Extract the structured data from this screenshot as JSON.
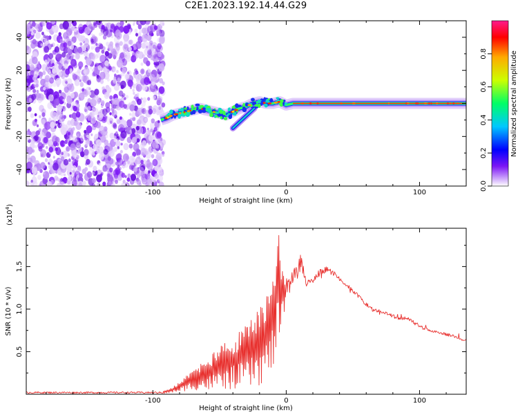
{
  "title": "C2E1.2023.192.14.44.G29",
  "chart_data": [
    {
      "type": "heatmap",
      "xlabel": "Height of straight line (km)",
      "ylabel": "Frequency (Hz)",
      "xlim": [
        -195,
        135
      ],
      "ylim": [
        -50,
        50
      ],
      "x_ticks": [
        -100,
        0,
        100
      ],
      "y_ticks": [
        -40,
        -20,
        0,
        20,
        40
      ],
      "noise_region_x": [
        -195,
        -92
      ],
      "signal_track": [
        [
          -94,
          -10
        ],
        [
          -90,
          -9
        ],
        [
          -85,
          -7
        ],
        [
          -80,
          -6
        ],
        [
          -75,
          -5
        ],
        [
          -70,
          -4
        ],
        [
          -65,
          -3
        ],
        [
          -60,
          -4
        ],
        [
          -55,
          -5
        ],
        [
          -50,
          -6
        ],
        [
          -45,
          -7
        ],
        [
          -40,
          -5
        ],
        [
          -35,
          -3
        ],
        [
          -30,
          -2
        ],
        [
          -25,
          0
        ],
        [
          -20,
          1
        ],
        [
          -15,
          0
        ],
        [
          -10,
          0
        ],
        [
          -5,
          1
        ],
        [
          0,
          -1
        ],
        [
          5,
          0
        ],
        [
          10,
          0
        ],
        [
          20,
          0
        ],
        [
          40,
          0
        ],
        [
          60,
          0
        ],
        [
          80,
          0
        ],
        [
          100,
          0
        ],
        [
          120,
          0
        ],
        [
          135,
          0
        ]
      ],
      "secondary_branch": [
        [
          -40,
          -15
        ],
        [
          -36,
          -12
        ],
        [
          -32,
          -9
        ],
        [
          -28,
          -6
        ],
        [
          -24,
          -3
        ]
      ],
      "colorbar": {
        "label": "Normalized spectral amplitude",
        "range": [
          0,
          1
        ],
        "ticks": [
          "0.0",
          "0.2",
          "0.4",
          "0.6",
          "0.8"
        ],
        "colors": [
          "#ffffff",
          "#7c16f5",
          "#0000ff",
          "#00c8ff",
          "#00ff66",
          "#ccff00",
          "#ffaa00",
          "#ff0000",
          "#ff1a8c"
        ]
      }
    },
    {
      "type": "line",
      "xlabel": "Height of straight line (km)",
      "ylabel": "SNR (10 * v/v)",
      "y_multiplier": "(x10",
      "y_multiplier_exp": "4",
      "xlim": [
        -195,
        135
      ],
      "ylim": [
        0.0,
        1.95
      ],
      "x_ticks": [
        -100,
        0,
        100
      ],
      "y_ticks": [
        "0.5",
        "1.0",
        "1.5"
      ],
      "color": "#e8312f",
      "series": [
        {
          "envelope": [
            [
              -195,
              0.02
            ],
            [
              -120,
              0.03
            ],
            [
              -95,
              0.03
            ],
            [
              -88,
              0.06
            ],
            [
              -82,
              0.12
            ],
            [
              -75,
              0.22
            ],
            [
              -70,
              0.3
            ],
            [
              -62,
              0.4
            ],
            [
              -55,
              0.48
            ],
            [
              -48,
              0.58
            ],
            [
              -42,
              0.65
            ],
            [
              -36,
              0.72
            ],
            [
              -30,
              0.82
            ],
            [
              -24,
              0.9
            ],
            [
              -18,
              1.1
            ],
            [
              -12,
              1.3
            ],
            [
              -8,
              1.6
            ],
            [
              -6,
              1.95
            ],
            [
              -2,
              1.45
            ],
            [
              2,
              1.35
            ],
            [
              6,
              1.5
            ],
            [
              10,
              1.7
            ],
            [
              15,
              1.38
            ],
            [
              20,
              1.36
            ],
            [
              25,
              1.47
            ],
            [
              30,
              1.5
            ],
            [
              35,
              1.46
            ],
            [
              40,
              1.38
            ],
            [
              45,
              1.3
            ],
            [
              50,
              1.26
            ],
            [
              55,
              1.16
            ],
            [
              60,
              1.06
            ],
            [
              65,
              1.02
            ],
            [
              70,
              0.98
            ],
            [
              75,
              0.97
            ],
            [
              80,
              0.94
            ],
            [
              85,
              0.9
            ],
            [
              90,
              0.92
            ],
            [
              95,
              0.88
            ],
            [
              100,
              0.82
            ],
            [
              105,
              0.78
            ],
            [
              110,
              0.76
            ],
            [
              115,
              0.74
            ],
            [
              120,
              0.72
            ],
            [
              125,
              0.7
            ],
            [
              130,
              0.66
            ],
            [
              135,
              0.64
            ]
          ],
          "floor": [
            [
              -195,
              0.0
            ],
            [
              -95,
              0.0
            ],
            [
              -85,
              0.02
            ],
            [
              -70,
              0.05
            ],
            [
              -55,
              0.04
            ],
            [
              -40,
              0.06
            ],
            [
              -30,
              0.06
            ],
            [
              -20,
              0.1
            ],
            [
              -12,
              0.2
            ],
            [
              -8,
              0.4
            ],
            [
              -4,
              0.7
            ],
            [
              0,
              1.0
            ],
            [
              10,
              1.15
            ],
            [
              20,
              1.25
            ],
            [
              30,
              1.38
            ],
            [
              40,
              1.3
            ],
            [
              50,
              1.14
            ],
            [
              60,
              1.0
            ],
            [
              70,
              0.92
            ],
            [
              80,
              0.86
            ],
            [
              90,
              0.84
            ],
            [
              100,
              0.74
            ],
            [
              110,
              0.7
            ],
            [
              120,
              0.66
            ],
            [
              130,
              0.62
            ],
            [
              135,
              0.61
            ]
          ]
        }
      ]
    }
  ]
}
